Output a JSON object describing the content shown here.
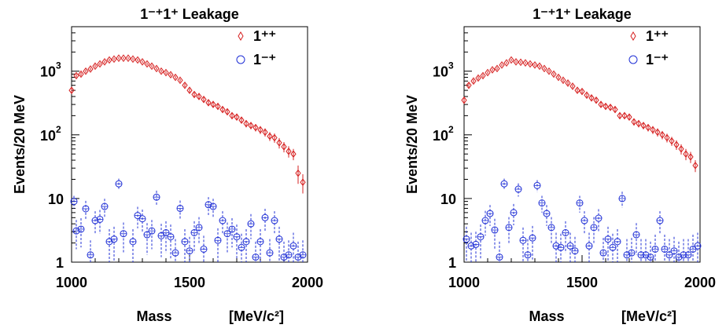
{
  "chart_data": [
    {
      "type": "scatter",
      "title": "1⁻⁺1⁺ Leakage",
      "xlabel": "Mass",
      "xunit": "[MeV/c²]",
      "ylabel": "Events/20 MeV",
      "xlim": [
        1000,
        2000
      ],
      "ylim": [
        1,
        5000
      ],
      "yscale": "log",
      "x_ticks": [
        "1000",
        "1500",
        "2000"
      ],
      "y_ticks": [
        {
          "value": 1,
          "base": "1",
          "exp": ""
        },
        {
          "value": 10,
          "base": "10",
          "exp": ""
        },
        {
          "value": 100,
          "base": "10",
          "exp": "2"
        },
        {
          "value": 1000,
          "base": "10",
          "exp": "3"
        }
      ],
      "legend_position": "top-right",
      "series": [
        {
          "name": "1⁺⁺",
          "marker": "diamond",
          "color": "#d62020",
          "x": [
            1000,
            1020,
            1040,
            1060,
            1080,
            1100,
            1120,
            1140,
            1160,
            1180,
            1200,
            1220,
            1240,
            1260,
            1280,
            1300,
            1320,
            1340,
            1360,
            1380,
            1400,
            1420,
            1440,
            1460,
            1480,
            1500,
            1520,
            1540,
            1560,
            1580,
            1600,
            1620,
            1640,
            1660,
            1680,
            1700,
            1720,
            1740,
            1760,
            1780,
            1800,
            1820,
            1840,
            1860,
            1880,
            1900,
            1920,
            1940,
            1960,
            1980
          ],
          "y": [
            500,
            850,
            900,
            1000,
            1080,
            1200,
            1300,
            1400,
            1500,
            1550,
            1600,
            1600,
            1600,
            1550,
            1500,
            1400,
            1300,
            1200,
            1100,
            1000,
            950,
            880,
            800,
            720,
            600,
            500,
            430,
            400,
            360,
            320,
            300,
            280,
            250,
            230,
            200,
            190,
            170,
            150,
            140,
            130,
            120,
            110,
            95,
            90,
            75,
            65,
            55,
            50,
            25,
            18
          ],
          "err": [
            60,
            55,
            55,
            55,
            55,
            60,
            60,
            65,
            65,
            65,
            65,
            65,
            65,
            65,
            65,
            60,
            60,
            55,
            55,
            50,
            50,
            48,
            45,
            43,
            40,
            37,
            35,
            33,
            30,
            28,
            27,
            26,
            25,
            24,
            22,
            21,
            20,
            19,
            18,
            17,
            17,
            16,
            15,
            15,
            14,
            12,
            11,
            10,
            8,
            6
          ]
        },
        {
          "name": "1⁻⁺",
          "marker": "circle",
          "color": "#2030d6",
          "x": [
            1010,
            1020,
            1040,
            1060,
            1080,
            1100,
            1120,
            1140,
            1160,
            1180,
            1200,
            1220,
            1260,
            1280,
            1300,
            1320,
            1340,
            1360,
            1380,
            1400,
            1420,
            1440,
            1460,
            1480,
            1500,
            1520,
            1540,
            1560,
            1580,
            1600,
            1620,
            1640,
            1660,
            1680,
            1700,
            1720,
            1740,
            1760,
            1780,
            1800,
            1820,
            1840,
            1860,
            1880,
            1900,
            1920,
            1940,
            1960,
            1980
          ],
          "y": [
            9,
            3.1,
            3.3,
            6.9,
            1.3,
            4.5,
            4.7,
            7.5,
            2.1,
            2.3,
            17,
            2.8,
            2.1,
            5.4,
            4.8,
            2.7,
            3.1,
            10.5,
            2.6,
            2.9,
            2.5,
            1.4,
            7,
            2.1,
            1.5,
            2.9,
            3.5,
            1.6,
            8,
            7.5,
            2.2,
            4.5,
            2.8,
            3.3,
            2.5,
            1.7,
            2.1,
            4,
            1.2,
            2.1,
            5,
            1.4,
            4.5,
            2.3,
            1.2,
            1.3,
            1.8,
            1.2,
            1.3
          ],
          "err": [
            2,
            1.5,
            1.6,
            2.3,
            0.9,
            1.8,
            1.9,
            2.4,
            1.2,
            1.3,
            3.5,
            1.4,
            1.2,
            2,
            1.9,
            1.4,
            1.5,
            2.8,
            1.4,
            1.5,
            1.4,
            0.9,
            2.3,
            1.2,
            1,
            1.5,
            1.6,
            1,
            2.5,
            2.4,
            1.2,
            1.8,
            1.4,
            1.6,
            1.4,
            1.1,
            1.2,
            1.7,
            0.9,
            1.2,
            1.9,
            0.9,
            1.8,
            1.3,
            0.9,
            0.9,
            1.1,
            0.9,
            0.9
          ]
        }
      ]
    },
    {
      "type": "scatter",
      "title": "1⁻⁺1⁺ Leakage",
      "xlabel": "Mass",
      "xunit": "[MeV/c²]",
      "ylabel": "Events/20 MeV",
      "xlim": [
        1000,
        2000
      ],
      "ylim": [
        1,
        5000
      ],
      "yscale": "log",
      "x_ticks": [
        "1000",
        "1500",
        "2000"
      ],
      "y_ticks": [
        {
          "value": 1,
          "base": "1",
          "exp": ""
        },
        {
          "value": 10,
          "base": "10",
          "exp": ""
        },
        {
          "value": 100,
          "base": "10",
          "exp": "2"
        },
        {
          "value": 1000,
          "base": "10",
          "exp": "3"
        }
      ],
      "legend_position": "top-right",
      "series": [
        {
          "name": "1⁺⁺",
          "marker": "diamond",
          "color": "#d62020",
          "x": [
            1000,
            1020,
            1040,
            1060,
            1080,
            1100,
            1120,
            1140,
            1160,
            1180,
            1200,
            1220,
            1240,
            1260,
            1280,
            1300,
            1320,
            1340,
            1360,
            1380,
            1400,
            1420,
            1440,
            1460,
            1480,
            1500,
            1520,
            1540,
            1560,
            1580,
            1600,
            1620,
            1640,
            1660,
            1680,
            1700,
            1720,
            1740,
            1760,
            1780,
            1800,
            1820,
            1840,
            1860,
            1880,
            1900,
            1920,
            1940,
            1960,
            1980
          ],
          "y": [
            350,
            600,
            700,
            780,
            850,
            950,
            1050,
            1100,
            1250,
            1350,
            1500,
            1400,
            1380,
            1350,
            1300,
            1250,
            1200,
            1100,
            1000,
            900,
            800,
            720,
            650,
            580,
            500,
            480,
            420,
            380,
            350,
            300,
            280,
            270,
            250,
            200,
            200,
            190,
            160,
            150,
            140,
            130,
            120,
            110,
            100,
            90,
            80,
            70,
            60,
            50,
            45,
            33
          ],
          "err": [
            45,
            45,
            45,
            47,
            48,
            50,
            52,
            53,
            55,
            57,
            60,
            58,
            57,
            57,
            56,
            55,
            54,
            52,
            50,
            48,
            45,
            43,
            40,
            38,
            35,
            35,
            33,
            31,
            30,
            28,
            27,
            26,
            25,
            22,
            22,
            21,
            20,
            19,
            18,
            17,
            17,
            16,
            15,
            14,
            13,
            12,
            11,
            10,
            9,
            7
          ]
        },
        {
          "name": "1⁻⁺",
          "marker": "circle",
          "color": "#2030d6",
          "x": [
            1010,
            1030,
            1050,
            1070,
            1090,
            1110,
            1130,
            1150,
            1170,
            1190,
            1210,
            1230,
            1250,
            1270,
            1290,
            1310,
            1330,
            1350,
            1370,
            1390,
            1410,
            1430,
            1450,
            1470,
            1490,
            1510,
            1530,
            1550,
            1570,
            1590,
            1610,
            1630,
            1650,
            1670,
            1690,
            1710,
            1730,
            1750,
            1770,
            1790,
            1810,
            1830,
            1850,
            1870,
            1890,
            1910,
            1930,
            1950,
            1970,
            1990
          ],
          "y": [
            2.3,
            1.8,
            1.9,
            2.5,
            4.5,
            5.8,
            3.2,
            1.2,
            17,
            3.5,
            6,
            14,
            2.2,
            1.3,
            2.4,
            16,
            8.5,
            5.8,
            3.5,
            1.8,
            1.7,
            2.9,
            1.8,
            1.5,
            8.5,
            4.5,
            1.8,
            3.5,
            4.9,
            1.4,
            2.3,
            1.7,
            2.1,
            10,
            1.3,
            1.4,
            2.7,
            1.3,
            1.3,
            1.2,
            1.6,
            4.5,
            1.6,
            1.3,
            1.5,
            1.2,
            1.3,
            1.3,
            1.6,
            1.8
          ],
          "err": [
            1.3,
            1.1,
            1.1,
            1.4,
            1.9,
            2.1,
            1.6,
            0.9,
            3.5,
            1.6,
            2.2,
            3.3,
            1.3,
            1,
            1.3,
            3.4,
            2.5,
            2.1,
            1.6,
            1.1,
            1.1,
            1.5,
            1.1,
            1,
            2.5,
            1.8,
            1.1,
            1.6,
            1.9,
            1,
            1.3,
            1.1,
            1.2,
            2.8,
            1,
            1,
            1.4,
            1,
            1,
            0.9,
            1.1,
            1.8,
            1.1,
            1,
            1,
            0.9,
            1,
            1,
            1.1,
            1.1
          ]
        }
      ]
    }
  ]
}
